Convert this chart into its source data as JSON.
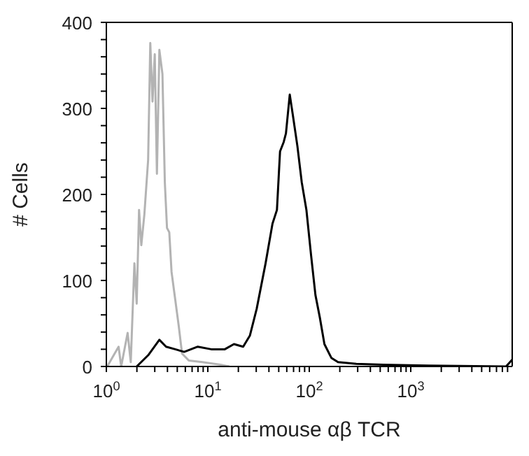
{
  "chart_data": {
    "type": "line",
    "xlabel": "anti-mouse αβ TCR",
    "ylabel": "# Cells",
    "log": "x",
    "marker": "none",
    "xlim": [
      1,
      10000
    ],
    "ylim": [
      0,
      400
    ],
    "xticks": [
      {
        "value": 1,
        "label": "10$^{0}$"
      },
      {
        "value": 2,
        "label": null
      },
      {
        "value": 3,
        "label": null
      },
      {
        "value": 4,
        "label": null
      },
      {
        "value": 5,
        "label": null
      },
      {
        "value": 6,
        "label": null
      },
      {
        "value": 7,
        "label": null
      },
      {
        "value": 8,
        "label": null
      },
      {
        "value": 9,
        "label": null
      },
      {
        "value": 10,
        "label": "10$^{1}$"
      },
      {
        "value": 20,
        "label": null
      },
      {
        "value": 30,
        "label": null
      },
      {
        "value": 40,
        "label": null
      },
      {
        "value": 50,
        "label": null
      },
      {
        "value": 60,
        "label": null
      },
      {
        "value": 70,
        "label": null
      },
      {
        "value": 80,
        "label": null
      },
      {
        "value": 90,
        "label": null
      },
      {
        "value": 100,
        "label": "10$^{2}$"
      },
      {
        "value": 200,
        "label": null
      },
      {
        "value": 300,
        "label": null
      },
      {
        "value": 400,
        "label": null
      },
      {
        "value": 500,
        "label": null
      },
      {
        "value": 600,
        "label": null
      },
      {
        "value": 700,
        "label": null
      },
      {
        "value": 800,
        "label": null
      },
      {
        "value": 900,
        "label": null
      },
      {
        "value": 1000,
        "label": "10$^{3}$"
      },
      {
        "value": 2000,
        "label": null
      },
      {
        "value": 3000,
        "label": null
      },
      {
        "value": 4000,
        "label": null
      },
      {
        "value": 5000,
        "label": null
      },
      {
        "value": 6000,
        "label": null
      },
      {
        "value": 7000,
        "label": null
      },
      {
        "value": 8000,
        "label": null
      },
      {
        "value": 9000,
        "label": null
      }
    ],
    "yticks": [
      0,
      {
        "value": 20,
        "label": null
      },
      {
        "value": 40,
        "label": null
      },
      {
        "value": 60,
        "label": null
      },
      {
        "value": 80,
        "label": null
      },
      100,
      {
        "value": 120,
        "label": null
      },
      {
        "value": 140,
        "label": null
      },
      {
        "value": 160,
        "label": null
      },
      {
        "value": 180,
        "label": null
      },
      200,
      {
        "value": 220,
        "label": null
      },
      {
        "value": 240,
        "label": null
      },
      {
        "value": 260,
        "label": null
      },
      {
        "value": 280,
        "label": null
      },
      300,
      {
        "value": 320,
        "label": null
      },
      {
        "value": 340,
        "label": null
      },
      {
        "value": 360,
        "label": null
      },
      {
        "value": 380,
        "label": null
      },
      400
    ],
    "series": [
      {
        "color": "#b3b3b3",
        "x": [
          1.02,
          1.32,
          1.4,
          1.62,
          1.74,
          1.89,
          1.99,
          2.1,
          2.21,
          2.37,
          2.58,
          2.71,
          2.85,
          3.0,
          3.15,
          3.33,
          3.57,
          3.77,
          3.96,
          4.17,
          4.39,
          4.77,
          5.17,
          5.57,
          6.49,
          8.85,
          13.3,
          16.3
        ],
        "values": [
          0,
          23,
          0,
          39,
          5,
          120,
          73,
          182,
          141,
          177,
          240,
          376,
          308,
          363,
          224,
          368,
          340,
          214,
          161,
          156,
          110,
          78,
          47,
          15,
          7,
          5,
          2,
          0
        ]
      },
      {
        "color": "#000000",
        "x": [
          1.99,
          2.58,
          3.33,
          3.88,
          4.77,
          5.85,
          7.96,
          10.8,
          14.7,
          18.1,
          22.3,
          26.0,
          30.3,
          37.1,
          43.4,
          48.0,
          51.5,
          56.0,
          58.9,
          64.2,
          68.9,
          76.4,
          84.3,
          93.7,
          104,
          115,
          127,
          141,
          165,
          192,
          291,
          538,
          1490,
          8700,
          10000
        ],
        "values": [
          0,
          13,
          31,
          23,
          20,
          17,
          23,
          20,
          20,
          26,
          23,
          36,
          67,
          120,
          166,
          182,
          250,
          261,
          271,
          316,
          292,
          256,
          214,
          182,
          130,
          83,
          57,
          26,
          10,
          5,
          3,
          2,
          1,
          0,
          8
        ]
      }
    ]
  }
}
